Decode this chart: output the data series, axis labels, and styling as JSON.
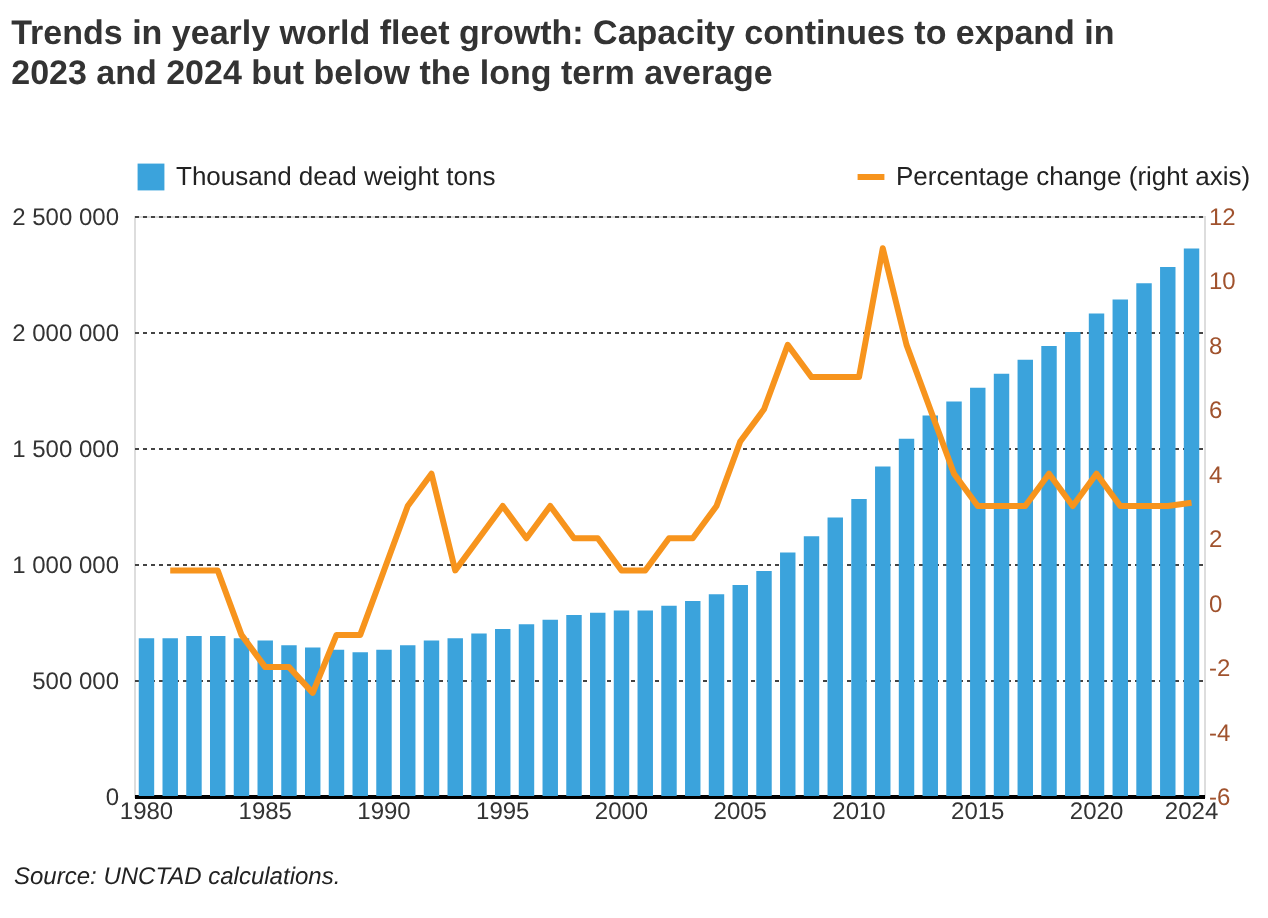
{
  "chart_data": {
    "type": "bar",
    "title": "Trends in yearly world fleet growth: Capacity continues to expand in 2023 and 2024 but below the long term average",
    "categories": [
      "1980",
      null,
      null,
      null,
      null,
      "1985",
      null,
      null,
      null,
      null,
      "1990",
      null,
      null,
      null,
      null,
      "1995",
      null,
      null,
      null,
      null,
      "2000",
      null,
      null,
      null,
      null,
      "2005",
      null,
      null,
      null,
      null,
      "2010",
      null,
      null,
      null,
      null,
      "2015",
      null,
      null,
      null,
      null,
      "2020",
      null,
      null,
      null,
      "2024"
    ],
    "series": [
      {
        "name": "Thousand dead weight tons",
        "color": "#3ba3dc",
        "values": [
          680000,
          680000,
          690000,
          690000,
          680000,
          670000,
          650000,
          640000,
          630000,
          620000,
          630000,
          650000,
          670000,
          680000,
          700000,
          720000,
          740000,
          760000,
          780000,
          790000,
          800000,
          800000,
          820000,
          840000,
          870000,
          910000,
          970000,
          1050000,
          1120000,
          1200000,
          1280000,
          1420000,
          1540000,
          1640000,
          1700000,
          1760000,
          1820000,
          1880000,
          1940000,
          2000000,
          2080000,
          2140000,
          2210000,
          2280000,
          2360000
        ]
      },
      {
        "name": "Percentage change (right axis)",
        "color": "#f7941d",
        "type": "line",
        "axis": "y2",
        "values": [
          null,
          1,
          1,
          1,
          -1,
          -2,
          -2,
          -2.8,
          -1,
          -1,
          1,
          3,
          4,
          1,
          2,
          3,
          2,
          3,
          2,
          2,
          1,
          1,
          2,
          2,
          3,
          5,
          6,
          8,
          7,
          7,
          7,
          11,
          8,
          6,
          4,
          3,
          3,
          3,
          4,
          3,
          4,
          3,
          3,
          3,
          3.1
        ]
      }
    ],
    "ylim": [
      0,
      2500000
    ],
    "yticks": [
      {
        "value": 0,
        "label": "0"
      },
      {
        "value": 500000,
        "label": "500 000"
      },
      {
        "value": 1000000,
        "label": "1 000 000"
      },
      {
        "value": 1500000,
        "label": "1 500 000"
      },
      {
        "value": 2000000,
        "label": "2 000 000"
      },
      {
        "value": 2500000,
        "label": "2 500 000"
      }
    ],
    "y2lim": [
      -6,
      12
    ],
    "y2ticks": [
      -6,
      -4,
      -2,
      0,
      2,
      4,
      6,
      8,
      10,
      12
    ],
    "grid": "y",
    "legend": "top",
    "annotations": [
      "Source: UNCTAD calculations."
    ]
  }
}
